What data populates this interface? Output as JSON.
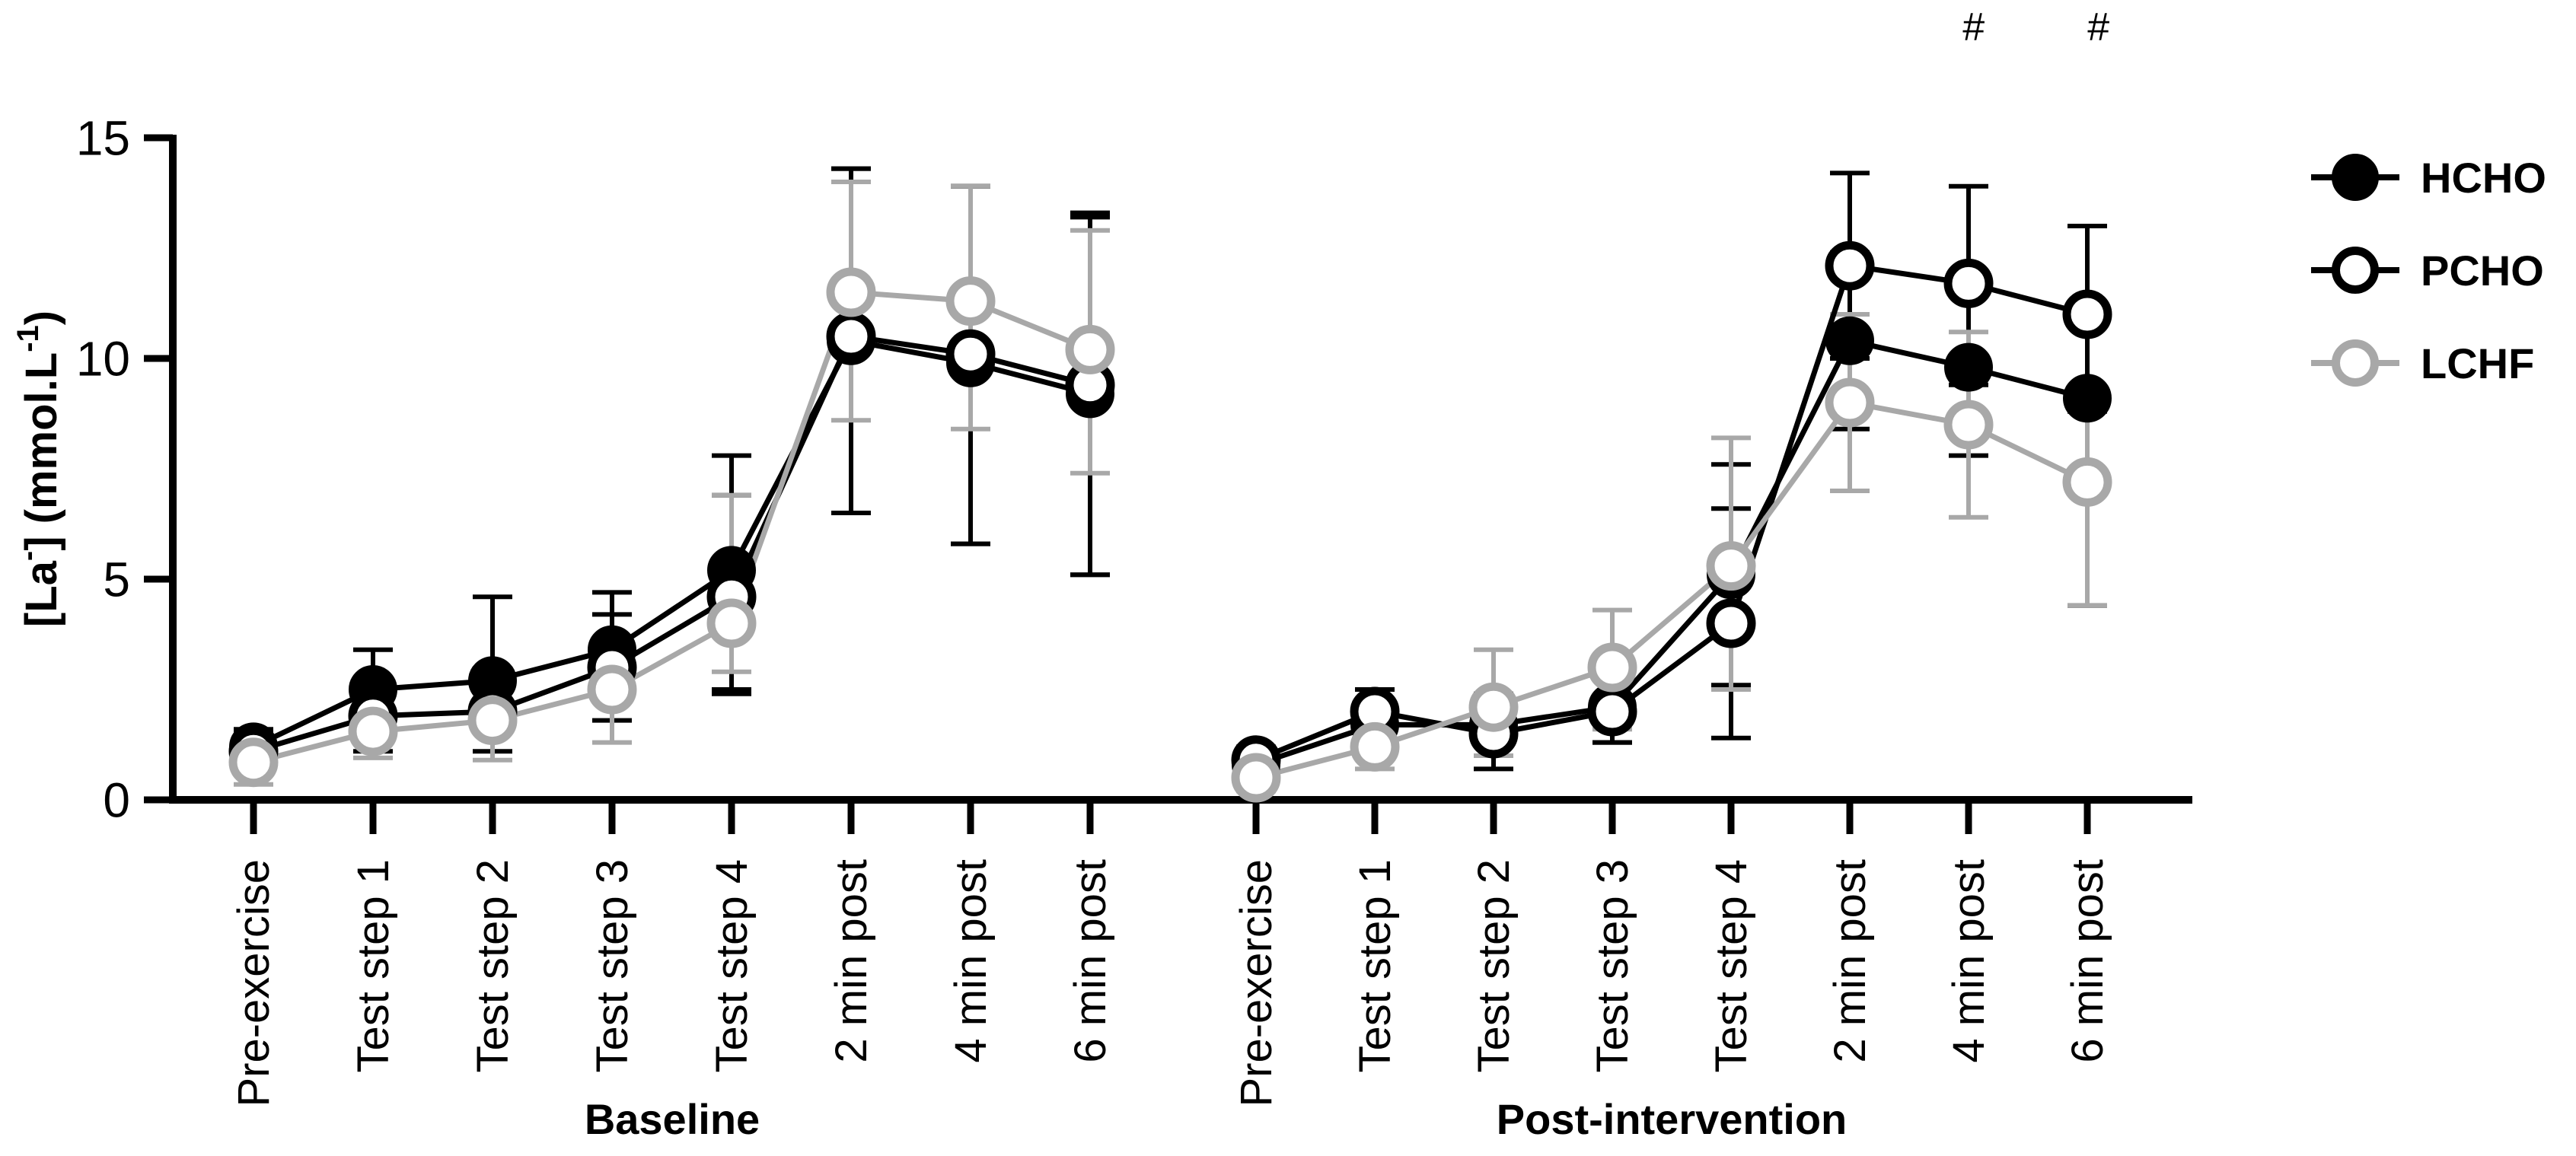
{
  "colors": {
    "black": "#000000",
    "gray": "#a8a8a8",
    "background": "#ffffff"
  },
  "chart_data": {
    "type": "line",
    "title": "",
    "ylabel": "[La⁻] (mmol.L⁻¹)",
    "ylabel_segments": [
      {
        "t": "[La",
        "sup": false
      },
      {
        "t": "-",
        "sup": true
      },
      {
        "t": "] (mmol.L",
        "sup": false
      },
      {
        "t": "-1",
        "sup": true
      },
      {
        "t": ")",
        "sup": false
      }
    ],
    "ylim": [
      0,
      15
    ],
    "yticks": [
      "0",
      "5",
      "10",
      "15"
    ],
    "grid": false,
    "legend_position": "right",
    "categories": [
      "Pre-exercise",
      "Test step 1",
      "Test step 2",
      "Test step 3",
      "Test step 4",
      "2 min post",
      "4 min post",
      "6 min post"
    ],
    "panels": [
      {
        "label": "Baseline",
        "series": [
          {
            "name": "HCHO",
            "marker": "filled-circle",
            "color": "#000000",
            "values": [
              1.2,
              2.5,
              2.7,
              3.4,
              5.2,
              10.4,
              9.9,
              9.2
            ],
            "err_up": [
              0.4,
              0.9,
              1.9,
              1.3,
              2.6,
              3.9,
              4.0,
              4.1
            ],
            "err_down": [
              0.4,
              0.9,
              1.0,
              1.1,
              2.7,
              3.9,
              4.1,
              4.1
            ]
          },
          {
            "name": "PCHO",
            "marker": "open-circle",
            "color": "#000000",
            "values": [
              1.1,
              1.9,
              2.0,
              3.0,
              4.6,
              10.5,
              10.1,
              9.4
            ],
            "err_up": [
              0.4,
              0.8,
              0.9,
              1.2,
              2.3,
              3.8,
              3.8,
              3.8
            ],
            "err_down": [
              0.4,
              0.8,
              0.9,
              1.2,
              2.2,
              4.0,
              4.3,
              4.3
            ]
          },
          {
            "name": "LCHF",
            "marker": "open-circle",
            "color": "#a8a8a8",
            "values": [
              0.85,
              1.55,
              1.8,
              2.5,
              4.0,
              11.5,
              11.3,
              10.2
            ],
            "err_up": [
              0.5,
              0.6,
              0.9,
              1.0,
              2.9,
              2.5,
              2.6,
              2.7
            ],
            "err_down": [
              0.5,
              0.6,
              0.9,
              1.2,
              1.1,
              2.9,
              2.9,
              2.8
            ]
          }
        ]
      },
      {
        "label": "Post-intervention",
        "series": [
          {
            "name": "HCHO",
            "marker": "filled-circle",
            "color": "#000000",
            "values": [
              0.8,
              1.7,
              1.7,
              2.1,
              5.1,
              10.4,
              9.8,
              9.1
            ],
            "err_up": [
              0.3,
              0.5,
              0.7,
              0.8,
              2.5,
              2.0,
              2.0,
              2.0
            ],
            "err_down": [
              0.3,
              0.5,
              0.7,
              0.8,
              2.5,
              2.0,
              2.0,
              4.7
            ]
          },
          {
            "name": "PCHO",
            "marker": "open-circle",
            "color": "#000000",
            "values": [
              0.9,
              2.0,
              1.5,
              2.0,
              4.0,
              12.1,
              11.7,
              11.0
            ],
            "err_up": [
              0.3,
              0.5,
              0.8,
              0.9,
              2.6,
              2.1,
              2.2,
              2.0
            ],
            "err_down": [
              0.3,
              0.5,
              0.8,
              0.7,
              2.6,
              2.1,
              2.3,
              2.2
            ]
          },
          {
            "name": "LCHF",
            "marker": "open-circle",
            "color": "#a8a8a8",
            "values": [
              0.5,
              1.2,
              2.1,
              3.0,
              5.3,
              9.0,
              8.5,
              7.2
            ],
            "err_up": [
              0.3,
              0.5,
              1.3,
              1.3,
              2.9,
              2.0,
              2.1,
              1.7
            ],
            "err_down": [
              0.3,
              0.5,
              1.1,
              1.4,
              2.8,
              2.0,
              2.1,
              2.8
            ]
          }
        ]
      }
    ],
    "legend": {
      "entries": [
        {
          "label": "HCHO",
          "marker": "filled-circle",
          "color": "#000000"
        },
        {
          "label": "PCHO",
          "marker": "open-circle",
          "color": "#000000"
        },
        {
          "label": "LCHF",
          "marker": "open-circle",
          "color": "#a8a8a8"
        }
      ]
    },
    "annotations": [
      {
        "text": "#",
        "panel_index": 1,
        "category_index": 6
      },
      {
        "text": "#",
        "panel_index": 1,
        "category_index": 7
      }
    ]
  }
}
